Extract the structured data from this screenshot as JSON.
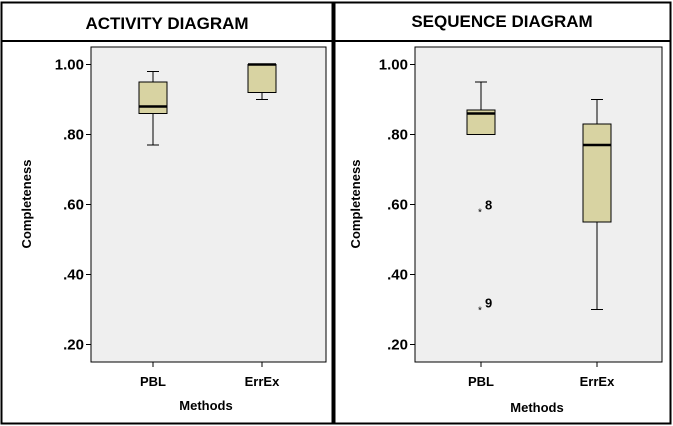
{
  "colors": {
    "box_fill": "#d8d3a2",
    "plot_bg": "#efefef",
    "frame": "#000000"
  },
  "chart_data": [
    {
      "type": "box",
      "title": "ACTIVITY DIAGRAM",
      "xlabel": "Methods",
      "ylabel": "Completeness",
      "ylim": [
        0.15,
        1.05
      ],
      "yticks": [
        1.0,
        0.8,
        0.6,
        0.4,
        0.2
      ],
      "ytick_labels": [
        "1.00",
        ".80",
        ".60",
        ".40",
        ".20"
      ],
      "categories": [
        "PBL",
        "ErrEx"
      ],
      "boxes": [
        {
          "category": "PBL",
          "whisker_low": 0.77,
          "q1": 0.86,
          "median": 0.88,
          "q3": 0.95,
          "whisker_high": 0.98,
          "outliers": []
        },
        {
          "category": "ErrEx",
          "whisker_low": 0.9,
          "q1": 0.92,
          "median": 1.0,
          "q3": 1.0,
          "whisker_high": 1.0,
          "outliers": []
        }
      ]
    },
    {
      "type": "box",
      "title": "SEQUENCE DIAGRAM",
      "xlabel": "Methods",
      "ylabel": "Completeness",
      "ylim": [
        0.15,
        1.05
      ],
      "yticks": [
        1.0,
        0.8,
        0.6,
        0.4,
        0.2
      ],
      "ytick_labels": [
        "1.00",
        ".80",
        ".60",
        ".40",
        ".20"
      ],
      "categories": [
        "PBL",
        "ErrEx"
      ],
      "boxes": [
        {
          "category": "PBL",
          "whisker_low": 0.8,
          "q1": 0.8,
          "median": 0.86,
          "q3": 0.87,
          "whisker_high": 0.95,
          "outliers": [
            {
              "value": 0.58,
              "label": "8"
            },
            {
              "value": 0.3,
              "label": "9"
            }
          ]
        },
        {
          "category": "ErrEx",
          "whisker_low": 0.3,
          "q1": 0.55,
          "median": 0.77,
          "q3": 0.83,
          "whisker_high": 0.9,
          "outliers": []
        }
      ]
    }
  ]
}
